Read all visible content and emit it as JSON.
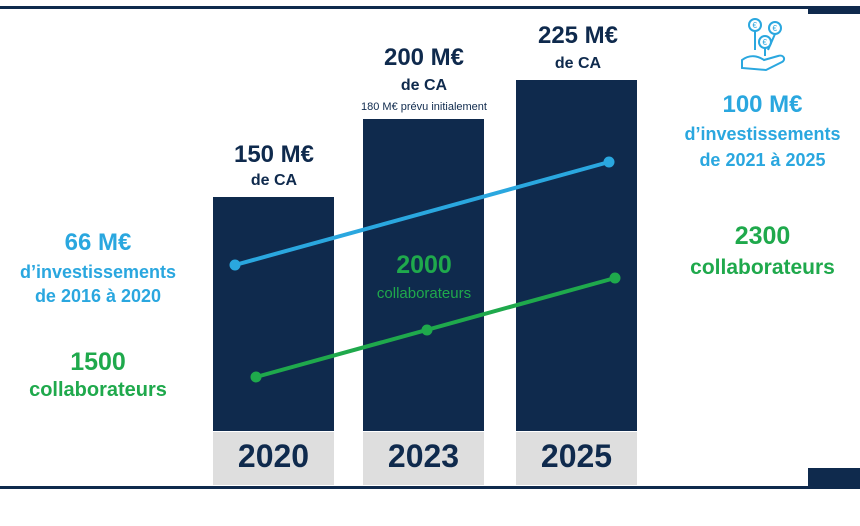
{
  "chart_data": {
    "type": "bar",
    "categories": [
      "2020",
      "2023",
      "2025"
    ],
    "series": [
      {
        "values": [
          150,
          200,
          225
        ]
      },
      {
        "values": [
          66,
          null,
          100
        ]
      },
      {
        "values": [
          1500,
          2000,
          2300
        ]
      }
    ],
    "bars": [
      {
        "year": "2020",
        "value_line": "150 M€",
        "unit_line": "de CA",
        "note": ""
      },
      {
        "year": "2023",
        "value_line": "200 M€",
        "unit_line": "de CA",
        "note": "180 M€ prévu initialement"
      },
      {
        "year": "2025",
        "value_line": "225 M€",
        "unit_line": "de CA",
        "note": ""
      }
    ],
    "investments_left": {
      "value": "66 M€",
      "line1": "d’investissements",
      "line2": "de 2016 à 2020"
    },
    "investments_right": {
      "value": "100 M€",
      "line1": "d’investissements",
      "line2": "de 2021 à 2025"
    },
    "staff_left": {
      "value": "1500",
      "label": "collaborateurs"
    },
    "staff_mid": {
      "value": "2000",
      "label": "collaborateurs"
    },
    "staff_right": {
      "value": "2300",
      "label": "collaborateurs"
    },
    "colors": {
      "bar": "#0f2a4d",
      "year_box": "#dedede",
      "investment_line": "#2aa7df",
      "staff_line": "#1fa94c"
    },
    "icon": "hand-money-plant-icon"
  }
}
